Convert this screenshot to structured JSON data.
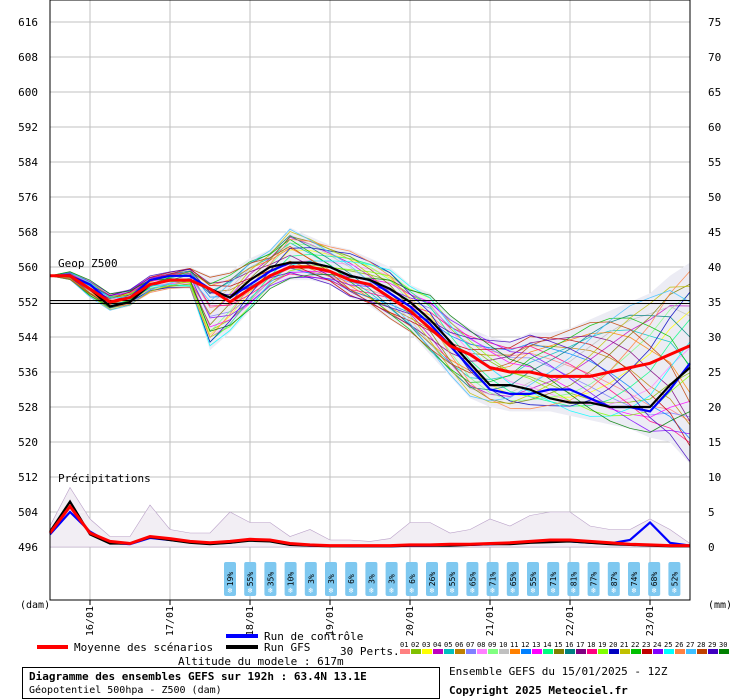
{
  "labels": {
    "geop_label": "Geop Z500",
    "precip_label": "Précipitations",
    "dam_unit": "(dam)",
    "mm_unit": "(mm)",
    "altitude": "Altitude du modele : 617m",
    "ensemble_info": "Ensemble GEFS du 15/01/2025 - 12Z",
    "copyright": "Copyright 2025 Meteociel.fr",
    "title_line1": "Diagramme des ensembles GEFS sur 192h : 63.4N 13.1E",
    "title_line2": "Géopotentiel 500hpa - Z500 (dam)"
  },
  "legend": {
    "mean": "Moyenne des scénarios",
    "control": "Run de contrôle",
    "gfs": "Run GFS",
    "perts": "30 Perts."
  },
  "member_ids": [
    "01",
    "02",
    "03",
    "04",
    "05",
    "06",
    "07",
    "08",
    "09",
    "10",
    "11",
    "12",
    "13",
    "14",
    "15",
    "16",
    "17",
    "18",
    "19",
    "20",
    "21",
    "22",
    "23",
    "24",
    "25",
    "26",
    "27",
    "28",
    "29",
    "30"
  ],
  "colors": {
    "mean": "#ff0000",
    "control": "#0000ff",
    "gfs": "#000000",
    "grid": "#c0c0c0",
    "snow_badge": "#7ec8f0",
    "members": [
      "#ff8080",
      "#80c000",
      "#ffff00",
      "#c000c0",
      "#00c0c0",
      "#c08000",
      "#8080ff",
      "#ff80ff",
      "#80ff80",
      "#c0c0c0",
      "#ff8000",
      "#0080ff",
      "#ff00ff",
      "#00ff80",
      "#808000",
      "#008080",
      "#800080",
      "#ff0080",
      "#80ff00",
      "#0000c0",
      "#c0c000",
      "#00c000",
      "#c00000",
      "#8000ff",
      "#00ffff",
      "#ff8040",
      "#40c0ff",
      "#c04000",
      "#4000c0",
      "#008000"
    ]
  },
  "snow_probabilities": [
    "19%",
    "55%",
    "35%",
    "10%",
    "3%",
    "3%",
    "6%",
    "3%",
    "3%",
    "6%",
    "26%",
    "55%",
    "65%",
    "71%",
    "65%",
    "55%",
    "71%",
    "81%",
    "77%",
    "87%",
    "74%",
    "68%",
    "52%"
  ],
  "chart_data": {
    "type": "line",
    "title": "Diagramme des ensembles GEFS sur 192h : 63.4N 13.1E",
    "x_tick_labels": [
      "16/01",
      "17/01",
      "18/01",
      "19/01",
      "20/01",
      "21/01",
      "22/01",
      "23/01"
    ],
    "left_axis": {
      "label": "(dam)",
      "ticks": [
        496,
        504,
        512,
        520,
        528,
        536,
        544,
        552,
        560,
        568,
        576,
        584,
        592,
        600,
        608,
        616
      ]
    },
    "right_axis": {
      "label": "(mm)",
      "ticks": [
        0,
        5,
        10,
        15,
        20,
        25,
        30,
        35,
        40,
        45,
        50,
        55,
        60,
        65,
        70,
        75
      ]
    },
    "reference_line_dam": 552,
    "x_hours": [
      0,
      6,
      12,
      18,
      24,
      30,
      36,
      42,
      48,
      54,
      60,
      66,
      72,
      78,
      84,
      90,
      96,
      102,
      108,
      114,
      120,
      126,
      132,
      138,
      144,
      150,
      156,
      162,
      168,
      174,
      180,
      186,
      192
    ],
    "first_tick_hour": 12,
    "geopotential_series": [
      {
        "name": "Moyenne des scénarios",
        "values": [
          558,
          558,
          555,
          552,
          553,
          556,
          557,
          557,
          555,
          552,
          555,
          558,
          560,
          560,
          559,
          557,
          556,
          553,
          550,
          546,
          542,
          540,
          537,
          536,
          536,
          535,
          535,
          535,
          536,
          537,
          538,
          540,
          542
        ]
      },
      {
        "name": "Run de contrôle",
        "values": [
          558,
          558,
          556,
          552,
          553,
          557,
          558,
          558,
          555,
          553,
          556,
          559,
          561,
          561,
          560,
          558,
          557,
          554,
          551,
          547,
          542,
          537,
          532,
          531,
          531,
          532,
          532,
          530,
          528,
          528,
          527,
          532,
          538
        ]
      },
      {
        "name": "Run GFS",
        "values": [
          558,
          558,
          555,
          551,
          552,
          556,
          557,
          557,
          555,
          553,
          557,
          560,
          561,
          561,
          560,
          558,
          557,
          555,
          552,
          548,
          543,
          538,
          533,
          533,
          532,
          530,
          529,
          529,
          528,
          528,
          528,
          533,
          537
        ]
      }
    ],
    "member_spread_dam": [
      [
        558,
        558
      ],
      [
        557,
        559
      ],
      [
        553,
        557
      ],
      [
        550,
        554
      ],
      [
        551,
        555
      ],
      [
        554,
        558
      ],
      [
        555,
        559
      ],
      [
        555,
        560
      ],
      [
        541,
        558
      ],
      [
        545,
        559
      ],
      [
        550,
        562
      ],
      [
        555,
        564
      ],
      [
        557,
        569
      ],
      [
        557,
        567
      ],
      [
        556,
        565
      ],
      [
        553,
        564
      ],
      [
        551,
        562
      ],
      [
        548,
        560
      ],
      [
        545,
        556
      ],
      [
        540,
        554
      ],
      [
        535,
        549
      ],
      [
        530,
        546
      ],
      [
        528,
        544
      ],
      [
        527,
        543
      ],
      [
        527,
        545
      ],
      [
        527,
        545
      ],
      [
        526,
        546
      ],
      [
        525,
        548
      ],
      [
        524,
        550
      ],
      [
        523,
        552
      ],
      [
        521,
        554
      ],
      [
        520,
        558
      ],
      [
        515,
        561
      ]
    ],
    "precip_series": [
      {
        "name": "Moyenne des scénarios",
        "values": [
          2.0,
          5.8,
          2.0,
          0.8,
          0.5,
          1.5,
          1.2,
          0.8,
          0.6,
          0.8,
          1.1,
          1.0,
          0.5,
          0.3,
          0.2,
          0.2,
          0.2,
          0.2,
          0.3,
          0.3,
          0.4,
          0.4,
          0.5,
          0.6,
          0.8,
          1.0,
          1.0,
          0.8,
          0.6,
          0.4,
          0.3,
          0.2,
          0.2
        ]
      },
      {
        "name": "Run de contrôle",
        "values": [
          1.8,
          5.0,
          2.2,
          0.6,
          0.4,
          1.3,
          1.0,
          0.7,
          0.5,
          0.6,
          1.0,
          0.9,
          0.4,
          0.2,
          0.2,
          0.1,
          0.1,
          0.1,
          0.2,
          0.2,
          0.3,
          0.3,
          0.4,
          0.5,
          0.7,
          0.9,
          0.8,
          0.6,
          0.5,
          1.0,
          3.5,
          0.6,
          0.2
        ]
      },
      {
        "name": "Run GFS",
        "values": [
          2.2,
          6.5,
          1.8,
          0.5,
          0.5,
          1.4,
          1.0,
          0.6,
          0.4,
          0.6,
          0.9,
          0.8,
          0.3,
          0.2,
          0.1,
          0.1,
          0.1,
          0.1,
          0.2,
          0.2,
          0.2,
          0.3,
          0.4,
          0.4,
          0.6,
          0.7,
          0.8,
          0.6,
          0.4,
          0.3,
          0.2,
          0.1,
          0.1
        ]
      }
    ],
    "precip_member_max": [
      3.0,
      8.5,
      4.0,
      1.5,
      1.5,
      6.0,
      2.5,
      2.0,
      2.0,
      5.0,
      3.5,
      3.5,
      1.5,
      2.5,
      1.0,
      1.0,
      0.8,
      1.2,
      3.5,
      3.5,
      2.0,
      2.5,
      4.0,
      3.0,
      4.5,
      5.0,
      5.0,
      3.0,
      2.5,
      2.5,
      4.0,
      2.5,
      0.5
    ],
    "grid": true
  }
}
